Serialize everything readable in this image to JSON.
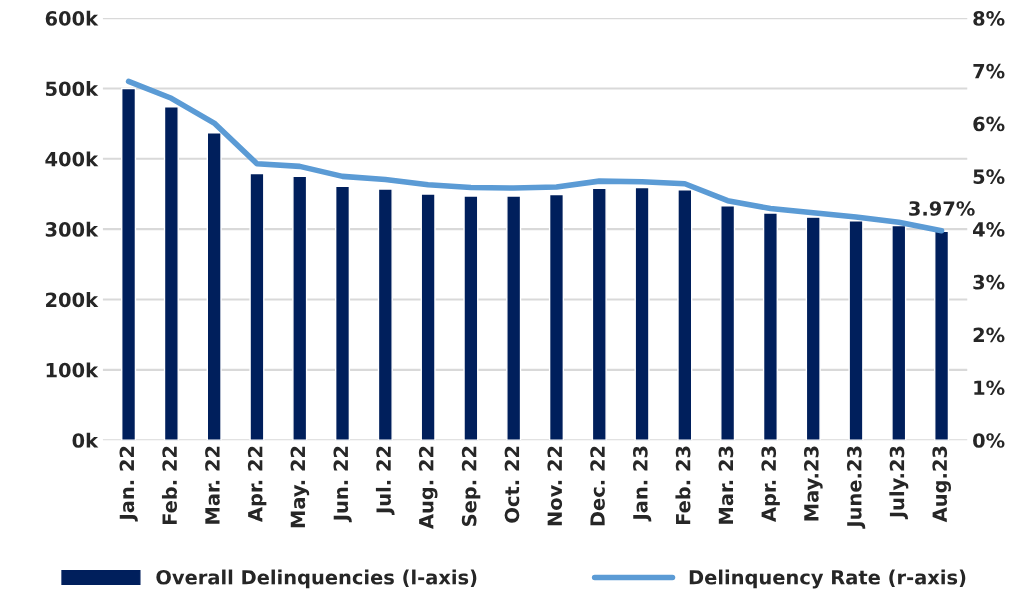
{
  "chart_data": {
    "type": "bar",
    "categories": [
      "Jan. 22",
      "Feb. 22",
      "Mar. 22",
      "Apr. 22",
      "May. 22",
      "Jun. 22",
      "Jul. 22",
      "Aug. 22",
      "Sep. 22",
      "Oct. 22",
      "Nov. 22",
      "Dec. 22",
      "Jan. 23",
      "Feb. 23",
      "Mar. 23",
      "Apr. 23",
      "May.23",
      "June.23",
      "July.23",
      "Aug.23"
    ],
    "series": [
      {
        "name": "Overall Delinquencies (l-axis)",
        "type": "bar",
        "color": "#001f5c",
        "values": [
          500000,
          474000,
          437000,
          379000,
          375000,
          361000,
          357000,
          350000,
          347000,
          347000,
          349000,
          358000,
          359000,
          356000,
          333000,
          323000,
          317000,
          312000,
          305000,
          297000
        ]
      },
      {
        "name": "Delinquency Rate (r-axis)",
        "type": "line",
        "axis": "y2",
        "color": "#5b9bd5",
        "values": [
          6.8,
          6.48,
          6.01,
          5.24,
          5.19,
          5.0,
          4.94,
          4.84,
          4.79,
          4.78,
          4.8,
          4.91,
          4.9,
          4.86,
          4.54,
          4.39,
          4.31,
          4.23,
          4.13,
          3.97
        ],
        "value_labels": [
          null,
          null,
          null,
          null,
          null,
          null,
          null,
          null,
          null,
          null,
          null,
          null,
          null,
          null,
          null,
          null,
          null,
          null,
          null,
          "3.97%"
        ]
      }
    ],
    "ylim": [
      0,
      600000
    ],
    "yticks": [
      {
        "value": 0,
        "label": "0k"
      },
      {
        "value": 100000,
        "label": "100k"
      },
      {
        "value": 200000,
        "label": "200k"
      },
      {
        "value": 300000,
        "label": "300k"
      },
      {
        "value": 400000,
        "label": "400k"
      },
      {
        "value": 500000,
        "label": "500k"
      },
      {
        "value": 600000,
        "label": "600k"
      }
    ],
    "y2lim": [
      0,
      8
    ],
    "y2ticks": [
      {
        "value": 0,
        "label": "0%"
      },
      {
        "value": 1,
        "label": "1%"
      },
      {
        "value": 2,
        "label": "2%"
      },
      {
        "value": 3,
        "label": "3%"
      },
      {
        "value": 4,
        "label": "4%"
      },
      {
        "value": 5,
        "label": "5%"
      },
      {
        "value": 6,
        "label": "6%"
      },
      {
        "value": 7,
        "label": "7%"
      },
      {
        "value": 8,
        "label": "8%"
      }
    ],
    "grid": "y",
    "legend": "bottom",
    "marker": "none",
    "line_style": "solid"
  }
}
